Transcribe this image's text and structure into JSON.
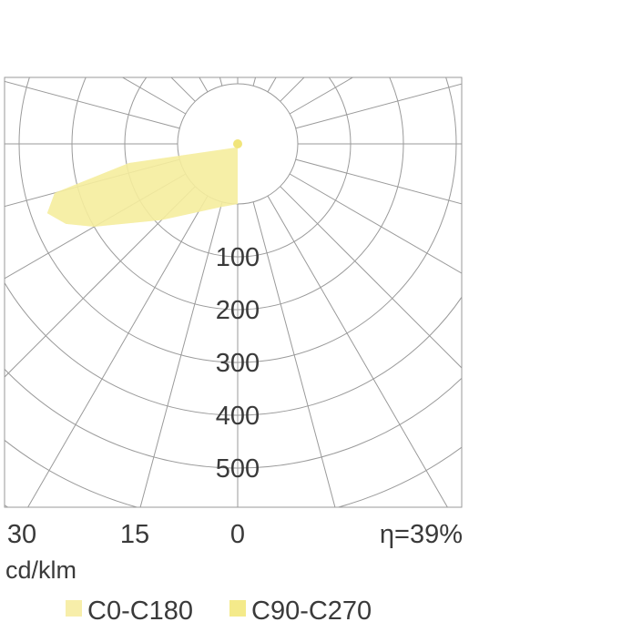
{
  "chart_data": {
    "type": "polar",
    "title": "",
    "unit": "cd/klm",
    "efficiency": "η=39%",
    "radial_ticks": [
      "100",
      "200",
      "300",
      "400",
      "500"
    ],
    "angle_ticks": [
      "30",
      "15",
      "0"
    ],
    "rlim": [
      0,
      600
    ],
    "grid": true,
    "legend_position": "bottom",
    "series": [
      {
        "name": "C0-C180",
        "color": "#f7eeaa",
        "angles_deg": [
          0,
          15,
          30,
          45,
          60,
          65,
          70,
          75,
          80
        ],
        "values": [
          0,
          10,
          35,
          90,
          200,
          245,
          270,
          245,
          95
        ]
      },
      {
        "name": "C90-C270",
        "color": "#f4ea8a",
        "angles_deg": [
          0,
          15,
          30,
          45,
          60,
          65,
          70,
          75,
          80
        ],
        "values": [
          0,
          10,
          35,
          90,
          200,
          245,
          270,
          245,
          95
        ]
      }
    ]
  }
}
